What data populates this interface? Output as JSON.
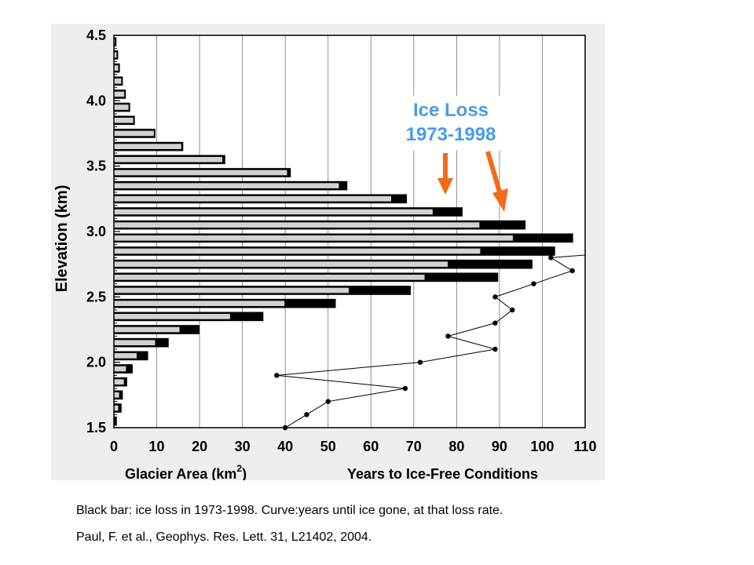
{
  "chart_data": {
    "type": "bar",
    "xlim": [
      0,
      110
    ],
    "ylim": [
      1.5,
      4.5
    ],
    "x_ticks": [
      "0",
      "10",
      "20",
      "30",
      "40",
      "50",
      "60",
      "70",
      "80",
      "90",
      "100",
      "110"
    ],
    "y_ticks": [
      "1.5",
      "2.0",
      "2.5",
      "3.0",
      "3.5",
      "4.0",
      "4.5"
    ],
    "ylabel": "Elevation (km)",
    "xlabel_left": "Glacier Area (km",
    "xlabel_left_sup": "2",
    "xlabel_left_close": ")",
    "xlabel_right": "Years to Ice-Free Conditions",
    "bar_band_km": 0.1,
    "bars": [
      {
        "elev": 1.55,
        "area_1998": 0.3,
        "area_1973": 0.6
      },
      {
        "elev": 1.65,
        "area_1998": 1.2,
        "area_1973": 1.7
      },
      {
        "elev": 1.75,
        "area_1998": 1.4,
        "area_1973": 2.0
      },
      {
        "elev": 1.85,
        "area_1998": 2.5,
        "area_1973": 3.0
      },
      {
        "elev": 1.95,
        "area_1998": 3.0,
        "area_1973": 4.3
      },
      {
        "elev": 2.05,
        "area_1998": 5.5,
        "area_1973": 7.9
      },
      {
        "elev": 2.15,
        "area_1998": 9.8,
        "area_1973": 12.7
      },
      {
        "elev": 2.25,
        "area_1998": 15.5,
        "area_1973": 19.9
      },
      {
        "elev": 2.35,
        "area_1998": 27.3,
        "area_1973": 34.8
      },
      {
        "elev": 2.45,
        "area_1998": 40.0,
        "area_1973": 51.7
      },
      {
        "elev": 2.55,
        "area_1998": 55.0,
        "area_1973": 69.2
      },
      {
        "elev": 2.65,
        "area_1998": 72.7,
        "area_1973": 89.6
      },
      {
        "elev": 2.75,
        "area_1998": 78.1,
        "area_1973": 97.6
      },
      {
        "elev": 2.85,
        "area_1998": 85.7,
        "area_1973": 102.9
      },
      {
        "elev": 2.95,
        "area_1998": 93.3,
        "area_1973": 107.1
      },
      {
        "elev": 3.05,
        "area_1998": 85.5,
        "area_1973": 96.0
      },
      {
        "elev": 3.15,
        "area_1998": 74.6,
        "area_1973": 81.3
      },
      {
        "elev": 3.25,
        "area_1998": 64.9,
        "area_1973": 68.3
      },
      {
        "elev": 3.35,
        "area_1998": 52.7,
        "area_1973": 54.4
      },
      {
        "elev": 3.45,
        "area_1998": 40.6,
        "area_1973": 41.2
      },
      {
        "elev": 3.55,
        "area_1998": 25.5,
        "area_1973": 25.9
      },
      {
        "elev": 3.65,
        "area_1998": 15.9,
        "area_1973": 16.1
      },
      {
        "elev": 3.75,
        "area_1998": 9.5,
        "area_1973": 9.6
      },
      {
        "elev": 3.85,
        "area_1998": 4.7,
        "area_1973": 4.8
      },
      {
        "elev": 3.95,
        "area_1998": 3.6,
        "area_1973": 3.7
      },
      {
        "elev": 4.05,
        "area_1998": 2.6,
        "area_1973": 2.7
      },
      {
        "elev": 4.15,
        "area_1998": 1.9,
        "area_1973": 2.0
      },
      {
        "elev": 4.25,
        "area_1998": 1.2,
        "area_1973": 1.3
      },
      {
        "elev": 4.35,
        "area_1998": 0.8,
        "area_1973": 0.9
      },
      {
        "elev": 4.45,
        "area_1998": 0.4,
        "area_1973": 0.5
      }
    ],
    "curve_years": [
      {
        "years": 40.0,
        "elev": 1.5
      },
      {
        "years": 45.0,
        "elev": 1.6
      },
      {
        "years": 50.0,
        "elev": 1.7
      },
      {
        "years": 68.0,
        "elev": 1.8
      },
      {
        "years": 38.0,
        "elev": 1.9
      },
      {
        "years": 71.5,
        "elev": 2.0
      },
      {
        "years": 89.0,
        "elev": 2.1
      },
      {
        "years": 78.0,
        "elev": 2.2
      },
      {
        "years": 89.0,
        "elev": 2.3
      },
      {
        "years": 93.0,
        "elev": 2.4
      },
      {
        "years": 89.0,
        "elev": 2.5
      },
      {
        "years": 98.0,
        "elev": 2.6
      },
      {
        "years": 107.0,
        "elev": 2.7
      },
      {
        "years": 102.0,
        "elev": 2.8
      },
      {
        "years": 110.0,
        "elev": 2.82
      }
    ],
    "annotation": {
      "line1": "Ice Loss",
      "line2": "1973-1998"
    },
    "colors": {
      "remaining": "#d2d2d2",
      "lost": "#000000",
      "annotation_text": "#4a9be6",
      "arrow": "#f26a1b",
      "grid": "#777777"
    }
  },
  "captions": {
    "line1": "Black bar: ice loss in 1973-1998. Curve:years until ice gone, at that loss rate.",
    "line2": "Paul, F. et al., Geophys. Res. Lett. 31, L21402, 2004."
  }
}
